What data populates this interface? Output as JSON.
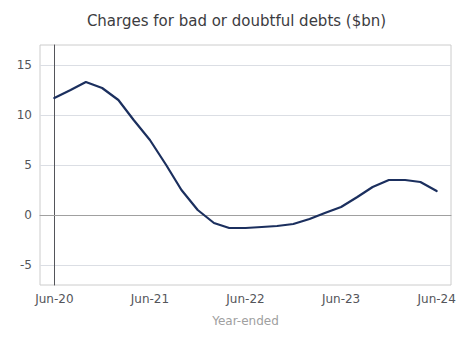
{
  "chart_data": {
    "type": "line",
    "title": "Charges for bad or doubtful debts ($bn)",
    "xlabel": "Year-ended",
    "x": [
      0,
      0.17,
      0.33,
      0.5,
      0.67,
      0.83,
      1.0,
      1.17,
      1.33,
      1.5,
      1.67,
      1.83,
      2.0,
      2.17,
      2.33,
      2.5,
      2.67,
      2.83,
      3.0,
      3.17,
      3.33,
      3.5,
      3.67,
      3.83,
      4.0
    ],
    "values": [
      11.7,
      12.5,
      13.3,
      12.7,
      11.5,
      9.5,
      7.5,
      5.0,
      2.5,
      0.5,
      -0.8,
      -1.3,
      -1.3,
      -1.2,
      -1.1,
      -0.9,
      -0.4,
      0.2,
      0.8,
      1.8,
      2.8,
      3.5,
      3.5,
      3.3,
      2.4
    ],
    "color": "#1b2f5e",
    "xlim": [
      -0.15,
      4.15
    ],
    "xticks": [
      {
        "value": 0,
        "label": "Jun-20"
      },
      {
        "value": 1,
        "label": "Jun-21"
      },
      {
        "value": 2,
        "label": "Jun-22"
      },
      {
        "value": 3,
        "label": "Jun-23"
      },
      {
        "value": 4,
        "label": "Jun-24"
      }
    ],
    "ylim": [
      -7,
      17
    ],
    "yticks": [
      -5,
      0,
      5,
      10,
      15
    ],
    "grid": "y"
  }
}
